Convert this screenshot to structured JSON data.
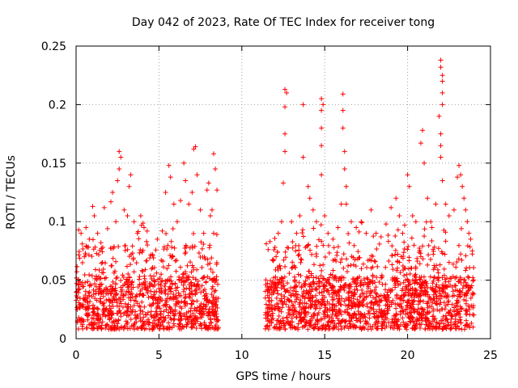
{
  "chart_data": {
    "type": "scatter",
    "title": "Day 042 of 2023, Rate Of TEC Index for receiver tong",
    "xlabel": "GPS time / hours",
    "ylabel": "ROTI / TECUs",
    "xlim": [
      0,
      25
    ],
    "ylim": [
      0,
      0.25
    ],
    "xticks": [
      0,
      5,
      10,
      15,
      20,
      25
    ],
    "xtick_labels": [
      "0",
      "5",
      "10",
      "15",
      "20",
      "25"
    ],
    "yticks": [
      0,
      0.05,
      0.1,
      0.15,
      0.2,
      0.25
    ],
    "ytick_labels": [
      "0",
      "0.05",
      "0.1",
      "0.15",
      "0.2",
      "0.25"
    ],
    "grid": true,
    "marker": "+",
    "color": "#ff0000",
    "data_gap_hours": [
      8.6,
      11.4
    ],
    "series": [
      {
        "name": "ROTI",
        "points": [
          [
            0.3,
            0.09
          ],
          [
            0.5,
            0.07
          ],
          [
            0.6,
            0.095
          ],
          [
            0.8,
            0.085
          ],
          [
            1.0,
            0.113
          ],
          [
            1.1,
            0.105
          ],
          [
            1.3,
            0.09
          ],
          [
            1.5,
            0.082
          ],
          [
            1.7,
            0.112
          ],
          [
            1.9,
            0.094
          ],
          [
            2.1,
            0.117
          ],
          [
            2.2,
            0.125
          ],
          [
            2.4,
            0.1
          ],
          [
            2.5,
            0.135
          ],
          [
            2.6,
            0.16
          ],
          [
            2.7,
            0.155
          ],
          [
            2.6,
            0.145
          ],
          [
            2.9,
            0.11
          ],
          [
            3.1,
            0.105
          ],
          [
            3.2,
            0.13
          ],
          [
            3.3,
            0.14
          ],
          [
            3.5,
            0.1
          ],
          [
            3.7,
            0.09
          ],
          [
            3.9,
            0.105
          ],
          [
            4.1,
            0.095
          ],
          [
            4.3,
            0.08
          ],
          [
            4.6,
            0.072
          ],
          [
            4.9,
            0.085
          ],
          [
            5.2,
            0.092
          ],
          [
            5.4,
            0.125
          ],
          [
            5.6,
            0.148
          ],
          [
            5.7,
            0.138
          ],
          [
            5.9,
            0.115
          ],
          [
            6.1,
            0.1
          ],
          [
            6.3,
            0.118
          ],
          [
            6.5,
            0.15
          ],
          [
            6.6,
            0.135
          ],
          [
            6.8,
            0.115
          ],
          [
            7.0,
            0.125
          ],
          [
            7.1,
            0.162
          ],
          [
            7.2,
            0.164
          ],
          [
            7.3,
            0.14
          ],
          [
            7.5,
            0.11
          ],
          [
            7.7,
            0.09
          ],
          [
            7.9,
            0.127
          ],
          [
            8.0,
            0.133
          ],
          [
            8.1,
            0.105
          ],
          [
            8.2,
            0.11
          ],
          [
            8.3,
            0.158
          ],
          [
            8.4,
            0.145
          ],
          [
            8.5,
            0.127
          ],
          [
            8.3,
            0.09
          ],
          [
            11.7,
            0.083
          ],
          [
            12.0,
            0.078
          ],
          [
            12.2,
            0.09
          ],
          [
            12.4,
            0.1
          ],
          [
            12.5,
            0.133
          ],
          [
            12.6,
            0.16
          ],
          [
            12.6,
            0.175
          ],
          [
            12.6,
            0.198
          ],
          [
            12.6,
            0.213
          ],
          [
            12.7,
            0.21
          ],
          [
            13.0,
            0.1
          ],
          [
            13.3,
            0.09
          ],
          [
            13.5,
            0.105
          ],
          [
            13.7,
            0.155
          ],
          [
            13.7,
            0.2
          ],
          [
            14.0,
            0.13
          ],
          [
            14.1,
            0.12
          ],
          [
            14.3,
            0.11
          ],
          [
            14.5,
            0.1
          ],
          [
            14.8,
            0.205
          ],
          [
            14.8,
            0.195
          ],
          [
            14.8,
            0.18
          ],
          [
            14.8,
            0.165
          ],
          [
            14.8,
            0.14
          ],
          [
            14.9,
            0.2
          ],
          [
            15.0,
            0.105
          ],
          [
            15.2,
            0.09
          ],
          [
            15.5,
            0.085
          ],
          [
            15.8,
            0.095
          ],
          [
            16.0,
            0.115
          ],
          [
            16.1,
            0.209
          ],
          [
            16.1,
            0.195
          ],
          [
            16.1,
            0.18
          ],
          [
            16.2,
            0.16
          ],
          [
            16.2,
            0.145
          ],
          [
            16.3,
            0.13
          ],
          [
            16.3,
            0.115
          ],
          [
            16.6,
            0.1
          ],
          [
            16.9,
            0.095
          ],
          [
            17.2,
            0.1
          ],
          [
            17.5,
            0.09
          ],
          [
            17.8,
            0.11
          ],
          [
            18.1,
            0.09
          ],
          [
            18.4,
            0.087
          ],
          [
            18.7,
            0.098
          ],
          [
            19.0,
            0.112
          ],
          [
            19.3,
            0.12
          ],
          [
            19.5,
            0.105
          ],
          [
            19.7,
            0.09
          ],
          [
            20.0,
            0.14
          ],
          [
            20.1,
            0.13
          ],
          [
            20.3,
            0.105
          ],
          [
            20.5,
            0.1
          ],
          [
            20.8,
            0.167
          ],
          [
            20.9,
            0.178
          ],
          [
            21.0,
            0.15
          ],
          [
            21.2,
            0.12
          ],
          [
            21.4,
            0.1
          ],
          [
            21.7,
            0.115
          ],
          [
            21.9,
            0.19
          ],
          [
            22.0,
            0.238
          ],
          [
            22.0,
            0.232
          ],
          [
            22.1,
            0.225
          ],
          [
            22.1,
            0.22
          ],
          [
            22.1,
            0.21
          ],
          [
            22.1,
            0.2
          ],
          [
            22.0,
            0.175
          ],
          [
            22.0,
            0.165
          ],
          [
            22.0,
            0.155
          ],
          [
            22.1,
            0.135
          ],
          [
            22.3,
            0.115
          ],
          [
            22.5,
            0.105
          ],
          [
            22.8,
            0.11
          ],
          [
            23.0,
            0.138
          ],
          [
            23.1,
            0.148
          ],
          [
            23.2,
            0.14
          ],
          [
            23.3,
            0.13
          ],
          [
            23.4,
            0.12
          ],
          [
            23.5,
            0.11
          ],
          [
            23.6,
            0.1
          ],
          [
            23.7,
            0.09
          ],
          [
            23.8,
            0.085
          ],
          [
            23.9,
            0.075
          ]
        ]
      }
    ]
  }
}
